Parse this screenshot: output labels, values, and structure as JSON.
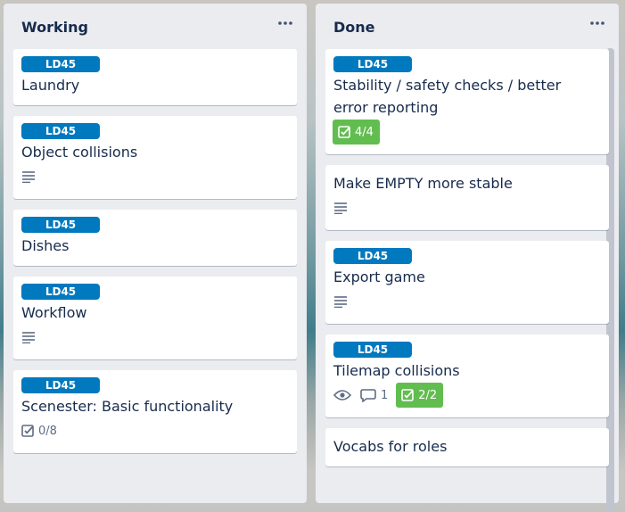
{
  "lists": [
    {
      "title": "Working",
      "cards": [
        {
          "label": "LD45",
          "title": "Laundry"
        },
        {
          "label": "LD45",
          "title": "Object collisions",
          "description": true
        },
        {
          "label": "LD45",
          "title": "Dishes"
        },
        {
          "label": "LD45",
          "title": "Workflow",
          "description": true
        },
        {
          "label": "LD45",
          "title": "Scenester: Basic functionality",
          "checklist": "0/8",
          "checklist_complete": false
        }
      ]
    },
    {
      "title": "Done",
      "cards": [
        {
          "label": "LD45",
          "title": "Stability / safety checks / better error reporting",
          "checklist": "4/4",
          "checklist_complete": true
        },
        {
          "title": "Make EMPTY more stable",
          "description": true
        },
        {
          "label": "LD45",
          "title": "Export game",
          "description": true
        },
        {
          "label": "LD45",
          "title": "Tilemap collisions",
          "watched": true,
          "comments": 1,
          "checklist": "2/2",
          "checklist_complete": true
        },
        {
          "title": "Vocabs for roles"
        }
      ]
    }
  ]
}
